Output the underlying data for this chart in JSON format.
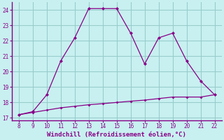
{
  "xlabel": "Windchill (Refroidissement éolien,°C)",
  "x_curve1": [
    8,
    9,
    10,
    11,
    12,
    13,
    14,
    15,
    16,
    17,
    18,
    19,
    20,
    21,
    22
  ],
  "y_curve1": [
    17.2,
    17.4,
    18.5,
    20.7,
    22.2,
    24.1,
    24.1,
    24.1,
    22.5,
    20.5,
    22.2,
    22.5,
    20.7,
    19.4,
    18.5
  ],
  "x_curve2": [
    8,
    9,
    10,
    11,
    12,
    13,
    14,
    15,
    16,
    17,
    18,
    19,
    20,
    21,
    22
  ],
  "y_curve2": [
    17.2,
    17.35,
    17.5,
    17.65,
    17.75,
    17.85,
    17.92,
    18.0,
    18.08,
    18.15,
    18.25,
    18.35,
    18.35,
    18.35,
    18.5
  ],
  "line_color": "#880088",
  "bg_color": "#c8f0f0",
  "grid_color": "#99cccc",
  "label_color": "#880088",
  "spine_color": "#880088",
  "xlim": [
    7.5,
    22.5
  ],
  "ylim": [
    16.85,
    24.5
  ],
  "xticks": [
    8,
    9,
    10,
    11,
    12,
    13,
    14,
    15,
    16,
    17,
    18,
    19,
    20,
    21,
    22
  ],
  "yticks": [
    17,
    18,
    19,
    20,
    21,
    22,
    23,
    24
  ]
}
